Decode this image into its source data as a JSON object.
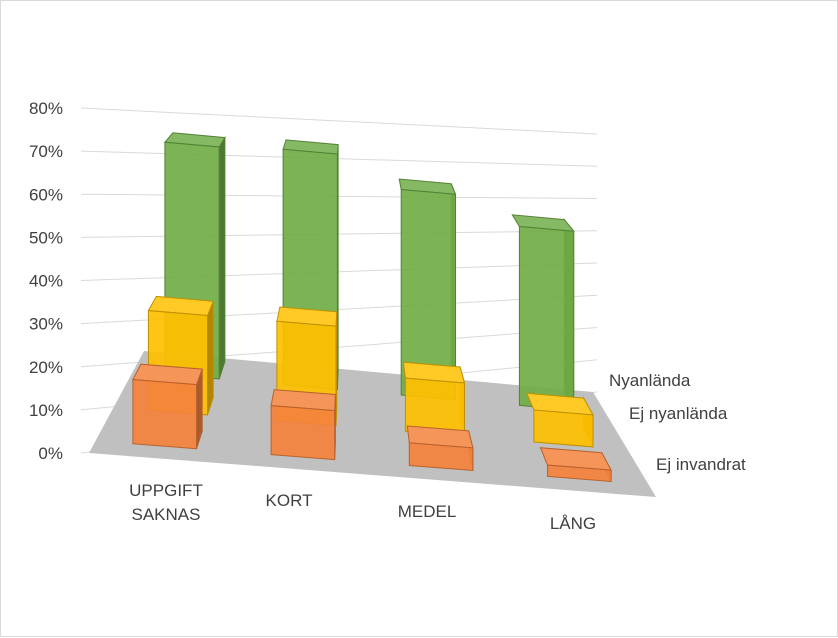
{
  "chart_data": {
    "type": "bar",
    "subtype": "3d-column",
    "title": "",
    "xlabel": "",
    "ylabel": "",
    "ylim": [
      0,
      0.8
    ],
    "y_ticks": [
      "0%",
      "10%",
      "20%",
      "30%",
      "40%",
      "50%",
      "60%",
      "70%",
      "80%"
    ],
    "grid": true,
    "categories": [
      "UPPGIFT SAKNAS",
      "KORT",
      "MEDEL",
      "LÅNG"
    ],
    "category_lines": [
      [
        "UPPGIFT",
        "SAKNAS"
      ],
      [
        "KORT"
      ],
      [
        "MEDEL"
      ],
      [
        "LÅNG"
      ]
    ],
    "series": [
      {
        "name": "Ej invandrat",
        "values": [
          0.17,
          0.13,
          0.06,
          0.03
        ],
        "color": "#f4823c"
      },
      {
        "name": "Ej nyanlända",
        "values": [
          0.28,
          0.28,
          0.15,
          0.09
        ],
        "color": "#ffc000"
      },
      {
        "name": "Nyanlända",
        "values": [
          0.7,
          0.71,
          0.62,
          0.54
        ],
        "color": "#70ad47"
      }
    ],
    "floor_color": "#c0c0c0"
  }
}
